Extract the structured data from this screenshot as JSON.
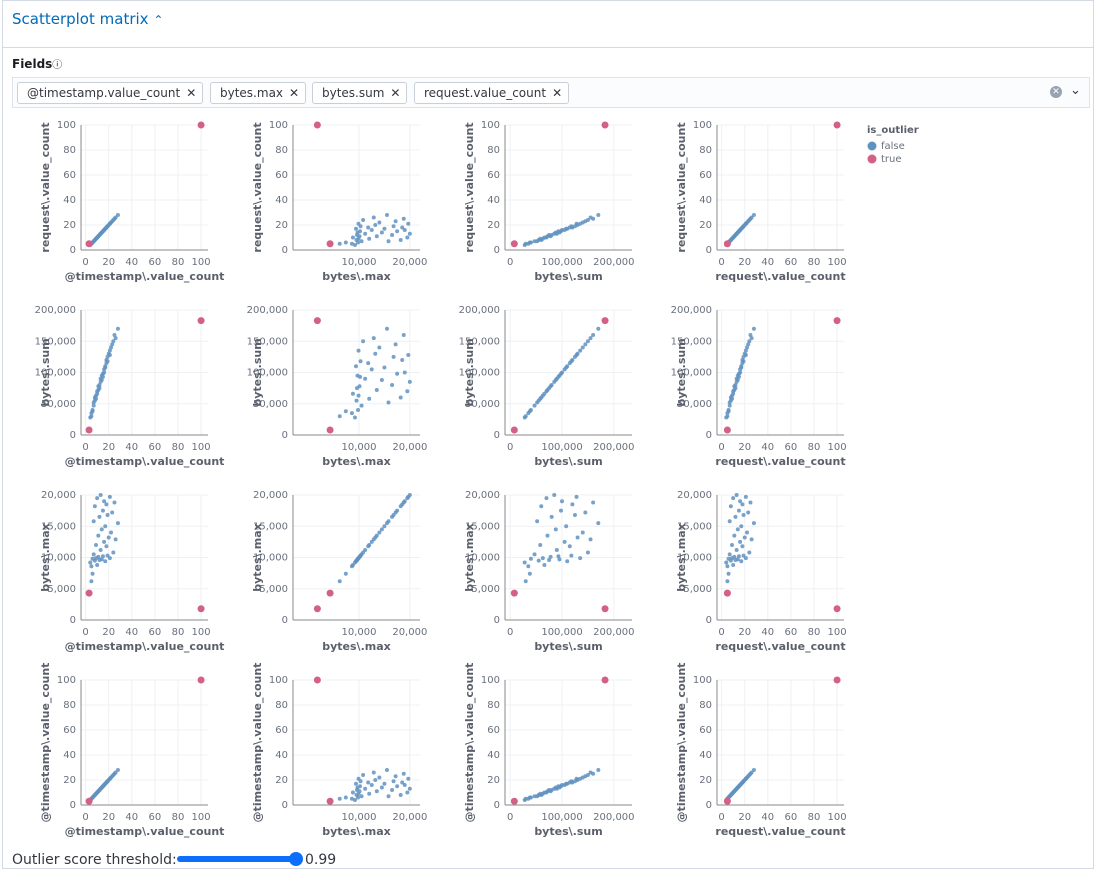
{
  "header": {
    "title": "Scatterplot matrix"
  },
  "fields_input": {
    "label": "Fields",
    "selected": [
      "@timestamp.value_count",
      "bytes.max",
      "bytes.sum",
      "request.value_count"
    ]
  },
  "chart_data": {
    "type": "scatter_matrix",
    "grid": true,
    "legend": {
      "title": "is_outlier",
      "position": "top-right"
    },
    "fields": [
      {
        "label": "@timestamp\\.value_count",
        "xlim": [
          -4,
          106
        ],
        "ylim": [
          0,
          100
        ],
        "xticks": [
          0,
          20,
          40,
          60,
          80,
          100
        ],
        "yticks": [
          0,
          20,
          40,
          60,
          80,
          100
        ]
      },
      {
        "label": "bytes\\.max",
        "xlim": [
          -3000,
          22000
        ],
        "ylim": [
          0,
          20000
        ],
        "xticks": [
          {
            "value": 10000,
            "label": "10,000"
          },
          {
            "value": 20000,
            "label": "20,000"
          }
        ],
        "yticks": [
          0,
          {
            "value": 5000,
            "label": "5,000"
          },
          {
            "value": 10000,
            "label": "10,000"
          },
          {
            "value": 15000,
            "label": "15,000"
          },
          {
            "value": 20000,
            "label": "20,000"
          }
        ]
      },
      {
        "label": "bytes\\.sum",
        "xlim": [
          -10000,
          235000
        ],
        "ylim": [
          0,
          200000
        ],
        "xticks": [
          0,
          {
            "value": 100000,
            "label": "100,000"
          },
          {
            "value": 200000,
            "label": "200,000"
          }
        ],
        "yticks": [
          0,
          {
            "value": 50000,
            "label": "50,000"
          },
          {
            "value": 100000,
            "label": "100,000"
          },
          {
            "value": 150000,
            "label": "150,000"
          },
          {
            "value": 200000,
            "label": "200,000"
          }
        ]
      },
      {
        "label": "request\\.value_count",
        "xlim": [
          -4,
          106
        ],
        "ylim": [
          0,
          100
        ],
        "xticks": [
          0,
          20,
          40,
          60,
          80,
          100
        ],
        "yticks": [
          0,
          20,
          40,
          60,
          80,
          100
        ]
      }
    ],
    "series": [
      {
        "name": "false",
        "color": "#6092c0",
        "values": [
          [
            4,
            5,
            6,
            7,
            7,
            8,
            8,
            9,
            9,
            10,
            10,
            11,
            11,
            12,
            12,
            13,
            13,
            14,
            14,
            15,
            15,
            16,
            16,
            17,
            17,
            18,
            18,
            19,
            19,
            20,
            21,
            21,
            22,
            23,
            24,
            25,
            26,
            28,
            5,
            6
          ],
          [
            9200,
            8600,
            9800,
            10500,
            15800,
            9500,
            18200,
            12000,
            9900,
            19500,
            8800,
            13500,
            10100,
            16500,
            9600,
            20000,
            11200,
            14500,
            9700,
            17500,
            10200,
            12500,
            19000,
            9400,
            15000,
            11800,
            18500,
            10300,
            16800,
            13200,
            19700,
            9900,
            14000,
            17200,
            10800,
            18800,
            12900,
            15500,
            6200,
            7400
          ],
          [
            28000,
            35000,
            40000,
            47000,
            52000,
            55000,
            60000,
            58000,
            63000,
            70000,
            66000,
            72000,
            78000,
            80000,
            75000,
            85000,
            90000,
            88000,
            95000,
            98000,
            93000,
            105000,
            100000,
            110000,
            108000,
            115000,
            120000,
            118000,
            125000,
            130000,
            128000,
            135000,
            140000,
            145000,
            150000,
            160000,
            155000,
            170000,
            30000,
            38000
          ],
          [
            4,
            5,
            6,
            7,
            7,
            8,
            8,
            9,
            9,
            10,
            10,
            11,
            11,
            12,
            12,
            13,
            13,
            14,
            14,
            15,
            15,
            16,
            16,
            17,
            17,
            18,
            18,
            19,
            19,
            20,
            21,
            21,
            22,
            23,
            24,
            25,
            26,
            28,
            5,
            6
          ]
        ]
      },
      {
        "name": "true",
        "color": "#d36086",
        "values": [
          [
            3,
            100
          ],
          [
            4300,
            1800
          ],
          [
            8000,
            183000
          ],
          [
            5,
            100
          ]
        ]
      }
    ]
  },
  "threshold": {
    "label": "Outlier score threshold:",
    "value": 0.99
  }
}
